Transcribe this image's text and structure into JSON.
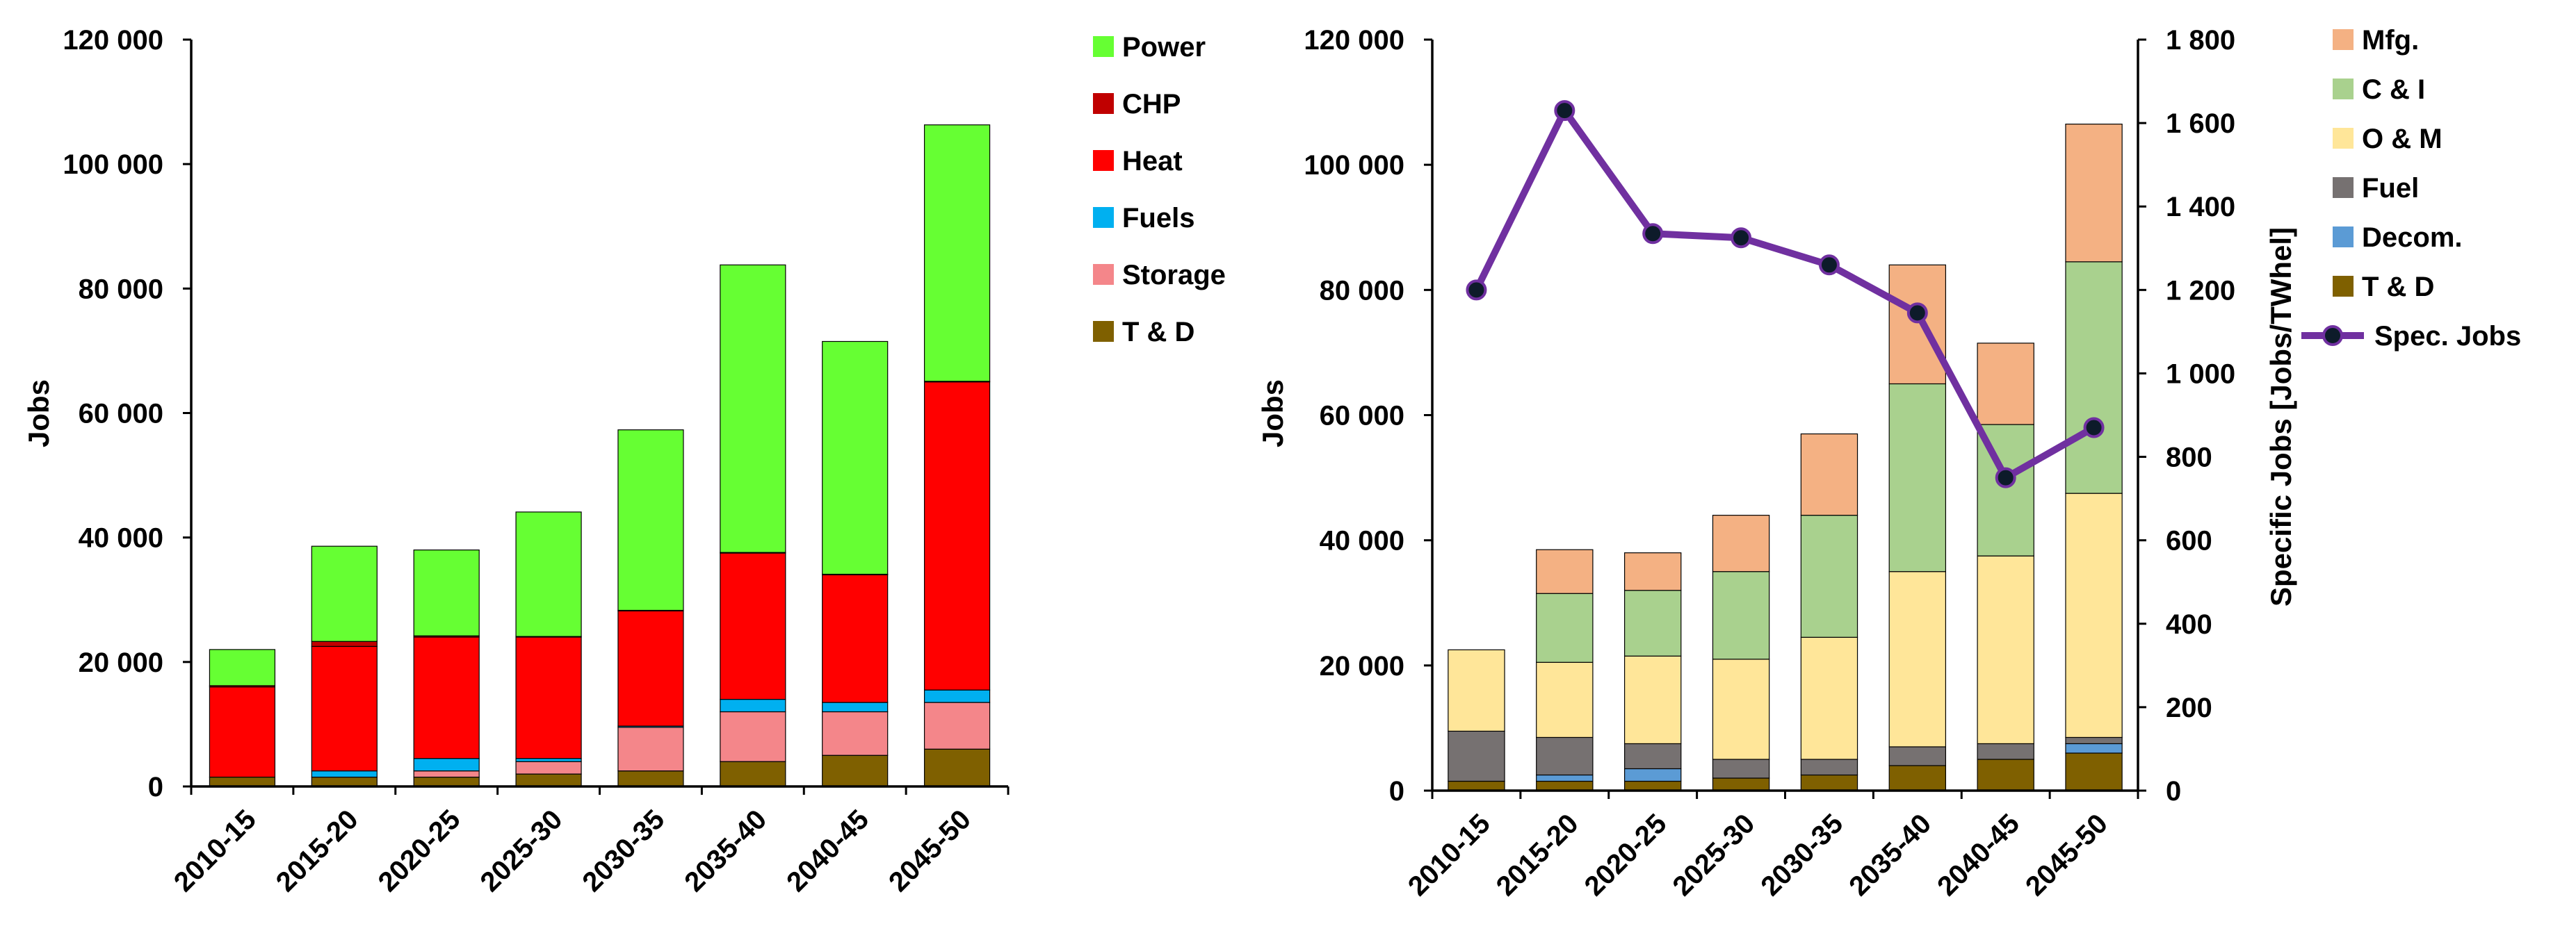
{
  "chart_data": [
    {
      "type": "bar",
      "stacked": true,
      "ylabel": "Jobs",
      "ylim": [
        0,
        120000
      ],
      "yticks": [
        "0",
        "20 000",
        "40 000",
        "60 000",
        "80 000",
        "100 000",
        "120 000"
      ],
      "categories": [
        "2010-15",
        "2015-20",
        "2020-25",
        "2025-30",
        "2030-35",
        "2035-40",
        "2040-45",
        "2045-50"
      ],
      "series": [
        {
          "name": "T & D",
          "color": "#7f6000",
          "values": [
            1500,
            1500,
            1500,
            2000,
            2500,
            4000,
            5000,
            6000
          ]
        },
        {
          "name": "Storage",
          "color": "#f4868a",
          "values": [
            0,
            0,
            1000,
            2000,
            7000,
            8000,
            7000,
            7500
          ]
        },
        {
          "name": "Fuels",
          "color": "#00b0f0",
          "values": [
            0,
            1000,
            2000,
            500,
            200,
            2000,
            1500,
            2000
          ]
        },
        {
          "name": "Heat",
          "color": "#ff0000",
          "values": [
            14500,
            20000,
            19500,
            19500,
            18500,
            23500,
            20500,
            49500
          ]
        },
        {
          "name": "CHP",
          "color": "#c00000",
          "values": [
            200,
            800,
            200,
            100,
            100,
            100,
            100,
            100
          ]
        },
        {
          "name": "Power",
          "color": "#66ff33",
          "values": [
            5800,
            15300,
            13800,
            20000,
            29000,
            46200,
            37400,
            41200
          ]
        }
      ]
    },
    {
      "type": "bar",
      "stacked": true,
      "ylabel": "Jobs",
      "y2label": "Specific Jobs [Jobs/TWhel]",
      "ylim": [
        0,
        120000
      ],
      "y2lim": [
        0,
        1800
      ],
      "yticks": [
        "0",
        "20 000",
        "40 000",
        "60 000",
        "80 000",
        "100 000",
        "120 000"
      ],
      "y2ticks": [
        "0",
        "200",
        "400",
        "600",
        "800",
        "1 000",
        "1 200",
        "1 400",
        "1 600",
        "1 800"
      ],
      "categories": [
        "2010-15",
        "2015-20",
        "2020-25",
        "2025-30",
        "2030-35",
        "2035-40",
        "2040-45",
        "2045-50"
      ],
      "series": [
        {
          "name": "T & D",
          "color": "#7f6000",
          "values": [
            1500,
            1500,
            1500,
            2000,
            2500,
            4000,
            5000,
            6000
          ]
        },
        {
          "name": "Decom.",
          "color": "#5b9bd5",
          "values": [
            0,
            1000,
            2000,
            0,
            0,
            0,
            0,
            1500
          ]
        },
        {
          "name": "Fuel",
          "color": "#767171",
          "values": [
            8000,
            6000,
            4000,
            3000,
            2500,
            3000,
            2500,
            1000
          ]
        },
        {
          "name": "O & M",
          "color": "#ffe699",
          "values": [
            13000,
            12000,
            14000,
            16000,
            19500,
            28000,
            30000,
            39000
          ]
        },
        {
          "name": "C & I",
          "color": "#a9d18e",
          "values": [
            0,
            11000,
            10500,
            14000,
            19500,
            30000,
            21000,
            37000
          ]
        },
        {
          "name": "Mfg.",
          "color": "#f4b183",
          "values": [
            0,
            7000,
            6000,
            9000,
            13000,
            19000,
            13000,
            22000
          ]
        }
      ],
      "line": {
        "name": "Spec. Jobs",
        "color": "#7030a0",
        "marker": "#0d1b2a",
        "axis": "right",
        "values": [
          1200,
          1630,
          1335,
          1325,
          1260,
          1145,
          750,
          870
        ]
      }
    }
  ]
}
